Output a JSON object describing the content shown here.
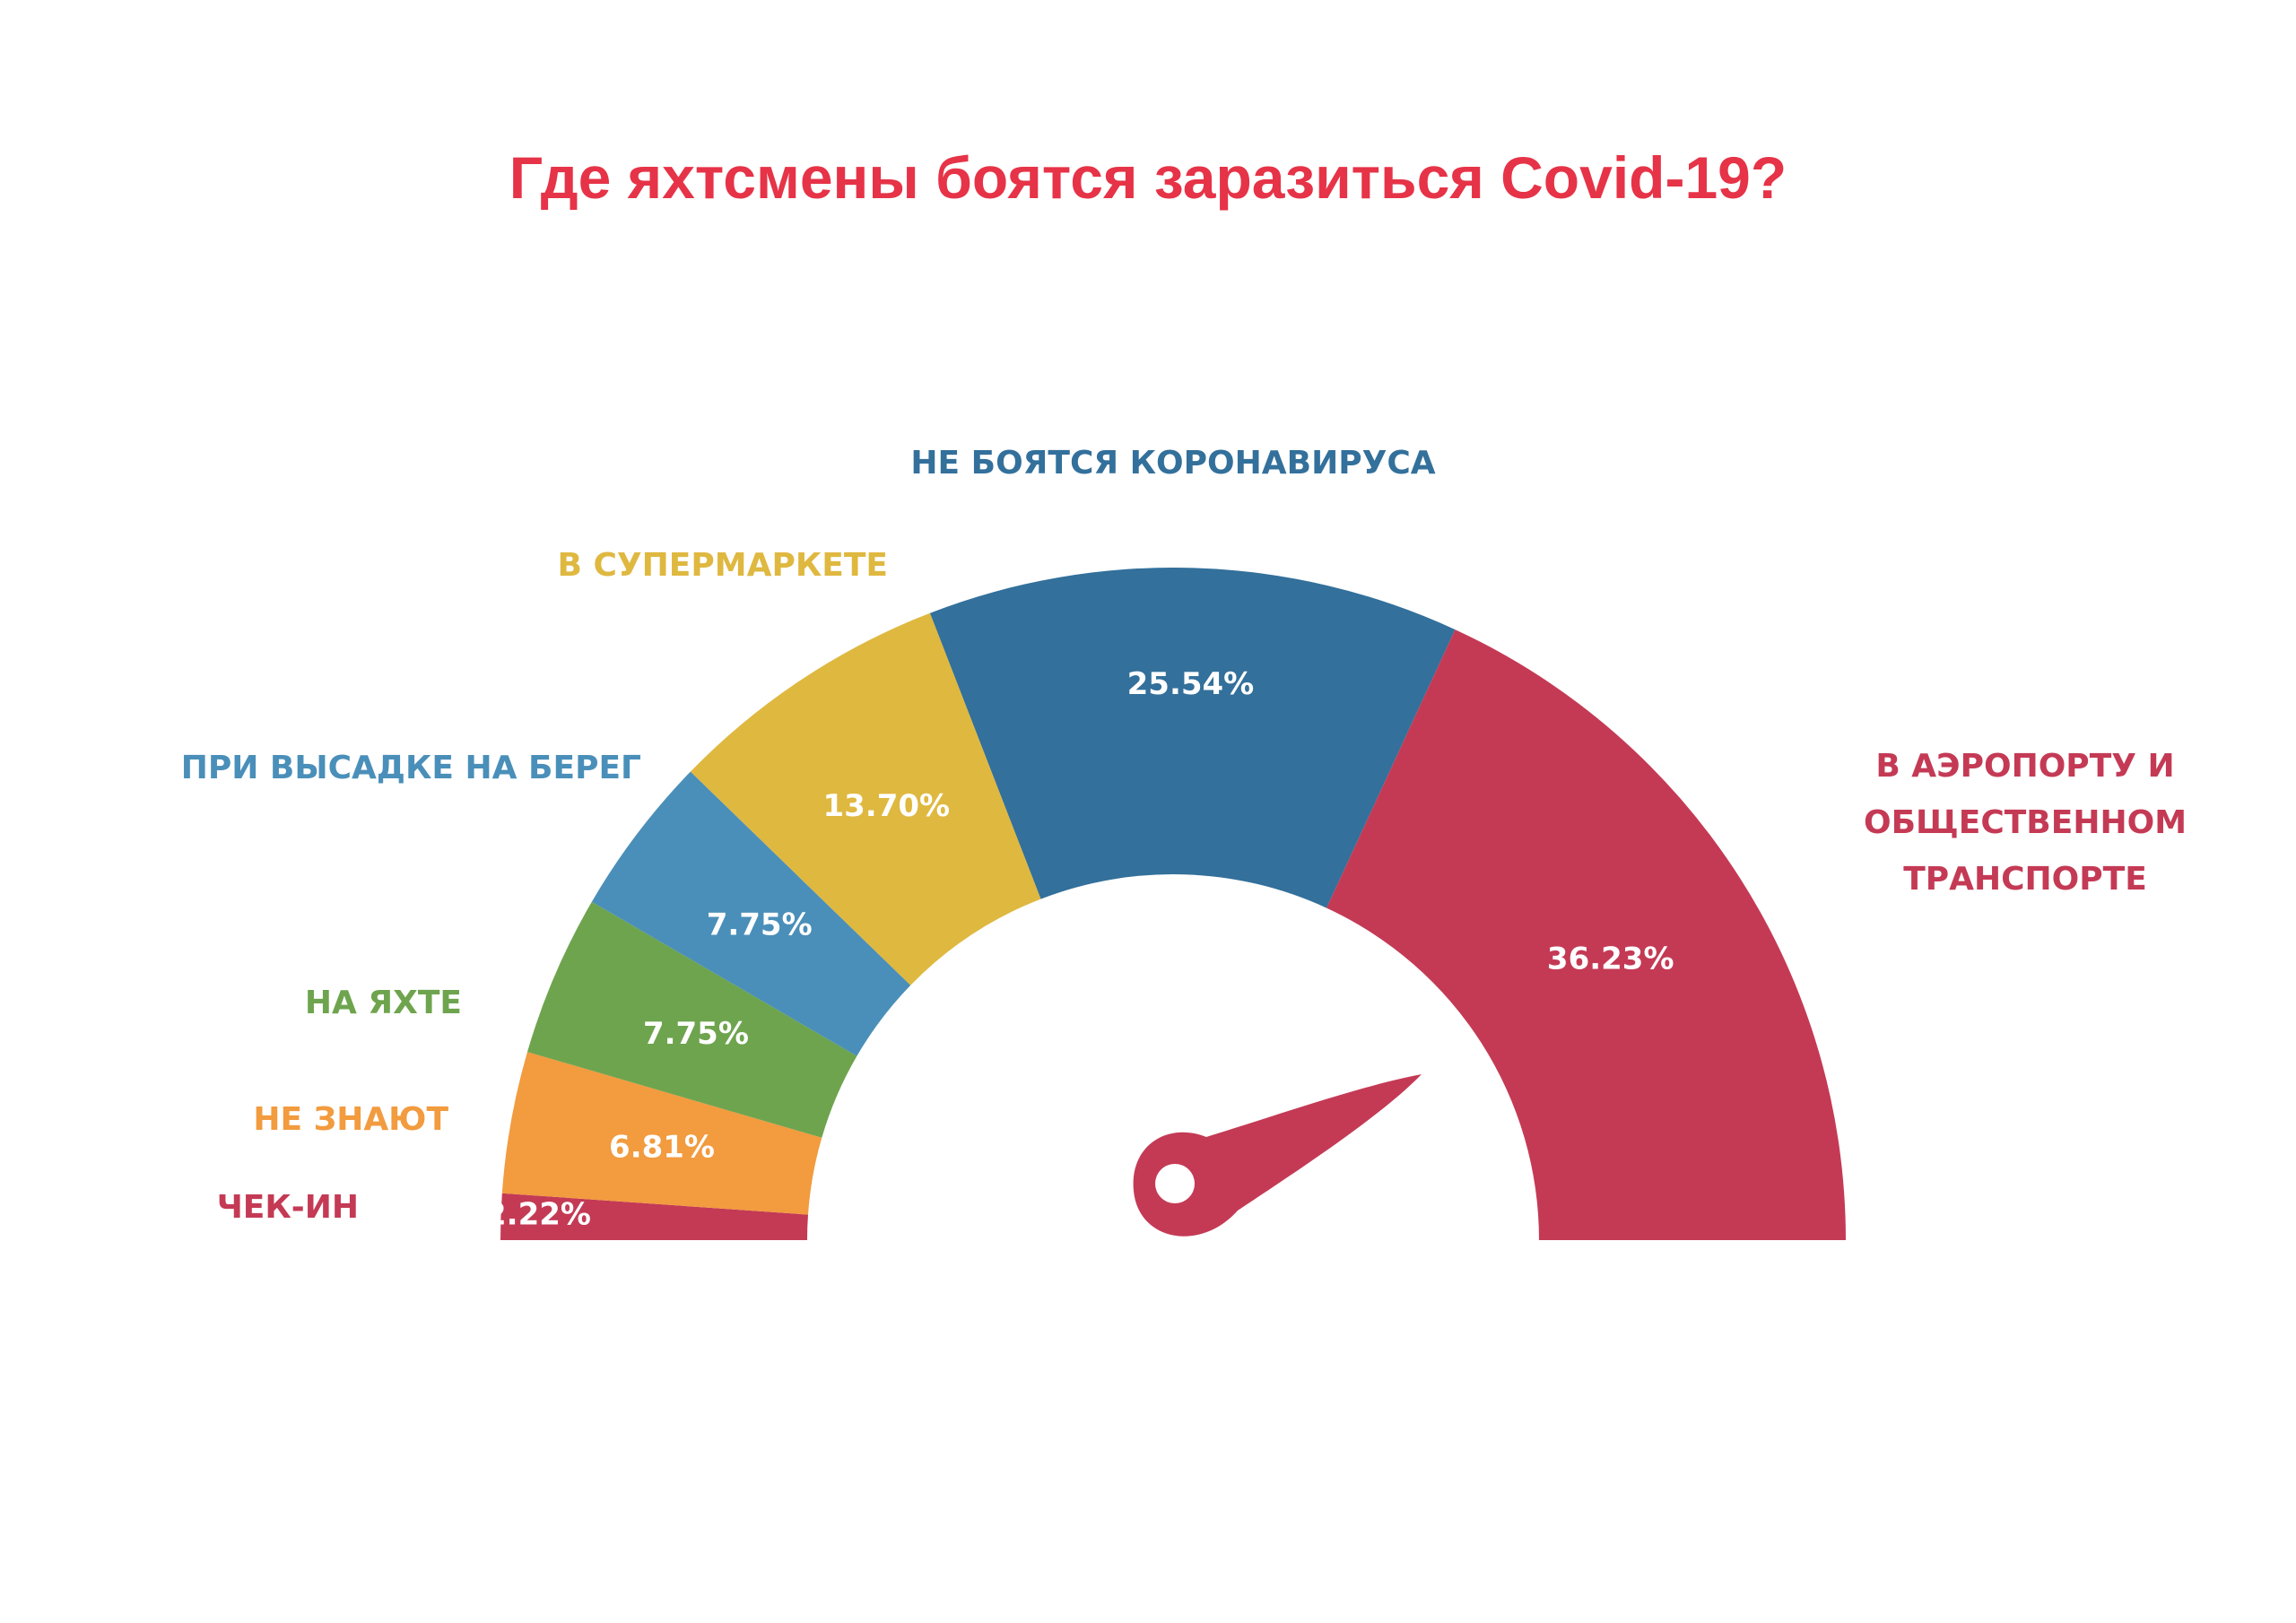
{
  "title": "Где яхтсмены боятся заразиться Covid-19?",
  "colors": {
    "title": "#e63347"
  },
  "chart_data": {
    "type": "pie",
    "layout": "half-donut gauge",
    "title": "Где яхтсмены боятся заразиться Covid-19?",
    "unit": "%",
    "slices": [
      {
        "label": "ЧЕК-ИН",
        "value": 2.22,
        "value_label": "2.22%",
        "color": "#c43a55",
        "label_color": "#c43a55"
      },
      {
        "label": "НЕ ЗНАЮТ",
        "value": 6.81,
        "value_label": "6.81%",
        "color": "#f29b3f",
        "label_color": "#f29b3f"
      },
      {
        "label": "НА ЯХТЕ",
        "value": 7.75,
        "value_label": "7.75%",
        "color": "#6ea44e",
        "label_color": "#6ea44e"
      },
      {
        "label": "ПРИ ВЫСАДКЕ НА БЕРЕГ",
        "value": 7.75,
        "value_label": "7.75%",
        "color": "#4a8fb9",
        "label_color": "#4a8fb9"
      },
      {
        "label": "В СУПЕРМАРКЕТЕ",
        "value": 13.7,
        "value_label": "13.70%",
        "color": "#dfb840",
        "label_color": "#dfb840"
      },
      {
        "label": "НЕ БОЯТСЯ КОРОНАВИРУСА",
        "value": 25.54,
        "value_label": "25.54%",
        "color": "#33709b",
        "label_color": "#33709b"
      },
      {
        "label_lines": [
          "В АЭРОПОРТУ И",
          "ОБЩЕСТВЕННОМ",
          "ТРАНСПОРТЕ"
        ],
        "value": 36.23,
        "value_label": "36.23%",
        "color": "#c43a55",
        "label_color": "#c43a55"
      }
    ],
    "needle": {
      "color": "#c43a55",
      "points_to": "В АЭРОПОРТУ И ОБЩЕСТВЕННОМ ТРАНСПОРТЕ"
    }
  }
}
